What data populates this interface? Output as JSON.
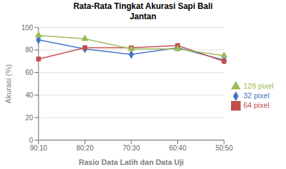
{
  "chart_data": {
    "type": "line",
    "title": "Rata-Rata Tingkat Akurasi Sapi Bali\nJantan",
    "x_label": "Rasio Data Latih dan Data Uji",
    "y_label": "Akurasi (%)",
    "categories": [
      "90:10",
      "80:20",
      "70:30",
      "60:40",
      "50:50"
    ],
    "series": [
      {
        "name": "32 pixel",
        "color": "#4472C4",
        "marker": "diamond",
        "values": [
          89,
          81,
          76,
          82,
          71
        ]
      },
      {
        "name": "64 pixel",
        "color": "#C0504D",
        "marker": "square",
        "values": [
          72,
          82,
          82,
          84,
          70
        ]
      },
      {
        "name": "128 pixel",
        "color": "#9BBB59",
        "marker": "triangle",
        "values": [
          93,
          90,
          81,
          81,
          75
        ]
      }
    ],
    "ylim": [
      0,
      100
    ],
    "yticks": [
      0,
      20,
      40,
      60,
      80,
      100
    ],
    "grid": true,
    "legend": "right"
  }
}
